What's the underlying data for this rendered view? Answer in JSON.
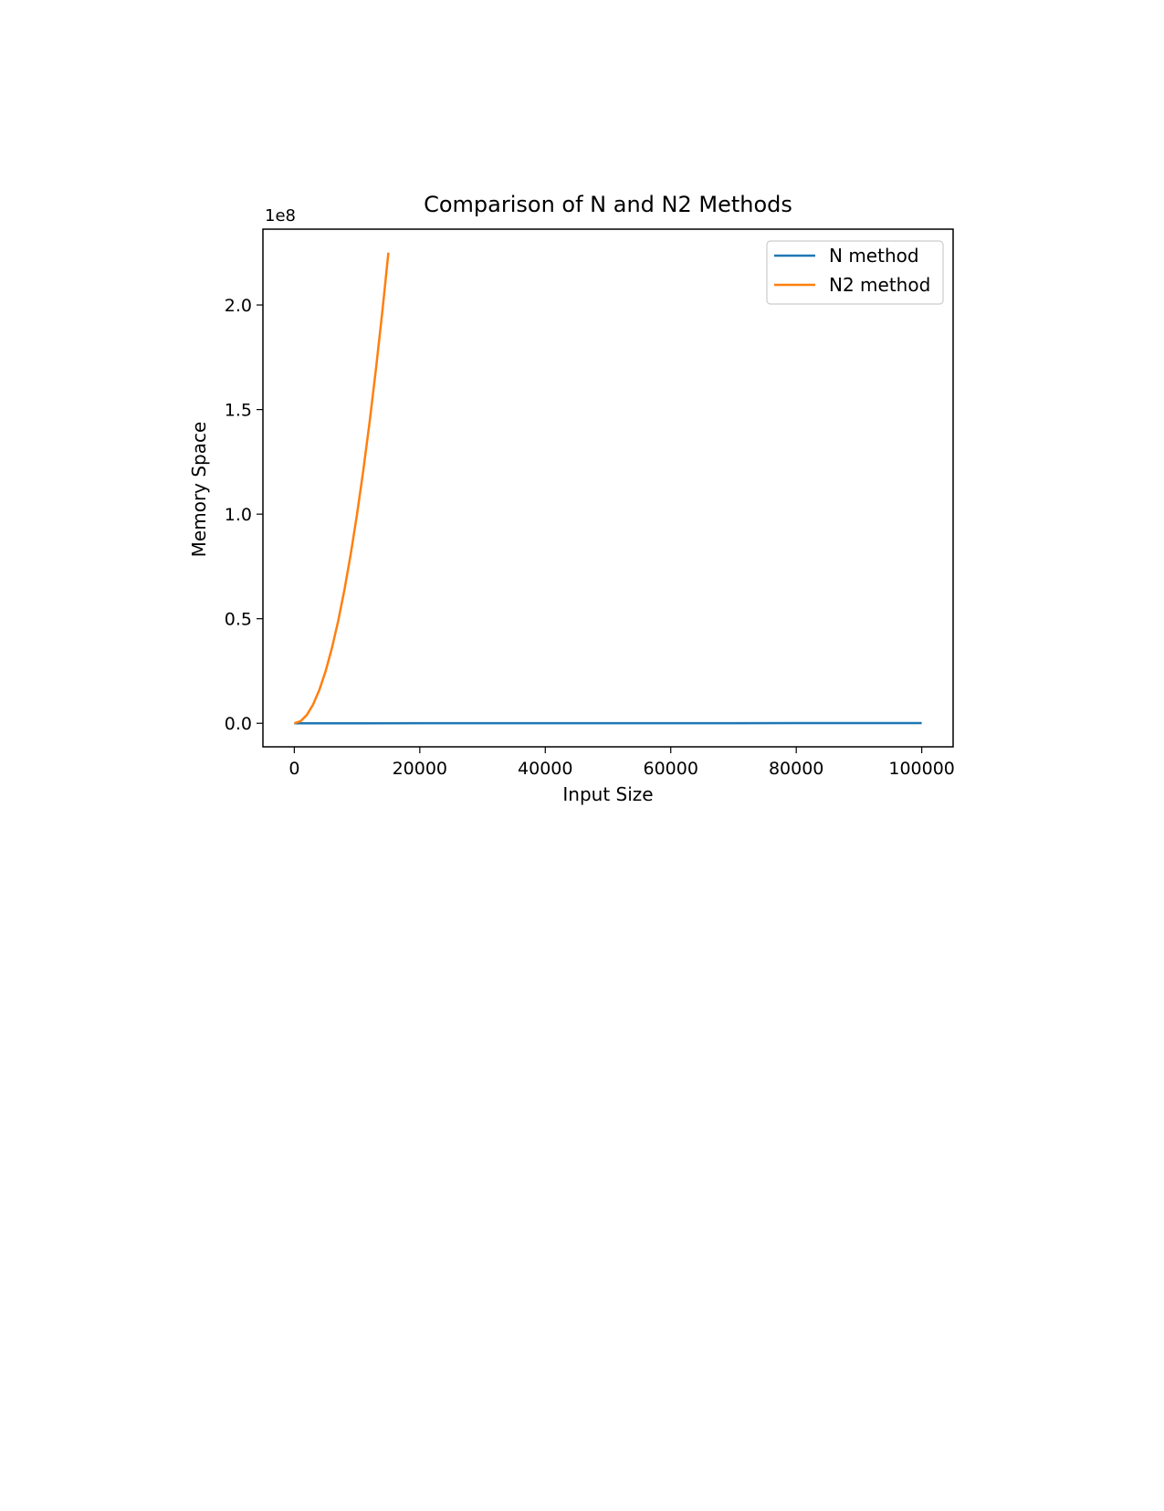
{
  "chart_data": {
    "type": "line",
    "title": "Comparison of N and N2 Methods",
    "xlabel": "Input Size",
    "ylabel": "Memory Space",
    "y_offset_label": "1e8",
    "xlim": [
      -5000,
      105000
    ],
    "ylim": [
      -11250000,
      236250000
    ],
    "x_ticks": [
      0,
      20000,
      40000,
      60000,
      80000,
      100000
    ],
    "x_tick_labels": [
      "0",
      "20000",
      "40000",
      "60000",
      "80000",
      "100000"
    ],
    "y_ticks": [
      0,
      50000000,
      100000000,
      150000000,
      200000000
    ],
    "y_tick_labels": [
      "0.0",
      "0.5",
      "1.0",
      "1.5",
      "2.0"
    ],
    "grid": false,
    "legend_position": "top-right",
    "series": [
      {
        "name": "N method",
        "color": "#1f77b4",
        "x": [
          0,
          10000,
          20000,
          30000,
          40000,
          50000,
          60000,
          70000,
          80000,
          90000,
          100000
        ],
        "y": [
          0,
          10000,
          20000,
          30000,
          40000,
          50000,
          60000,
          70000,
          80000,
          90000,
          100000
        ]
      },
      {
        "name": "N2 method",
        "color": "#ff7f0e",
        "x": [
          0,
          1000,
          2000,
          3000,
          4000,
          5000,
          6000,
          7000,
          8000,
          9000,
          10000,
          11000,
          12000,
          13000,
          14000,
          15000
        ],
        "y": [
          0,
          1000000,
          4000000,
          9000000,
          16000000,
          25000000,
          36000000,
          49000000,
          64000000,
          81000000,
          100000000,
          121000000,
          144000000,
          169000000,
          196000000,
          225000000
        ]
      }
    ]
  }
}
